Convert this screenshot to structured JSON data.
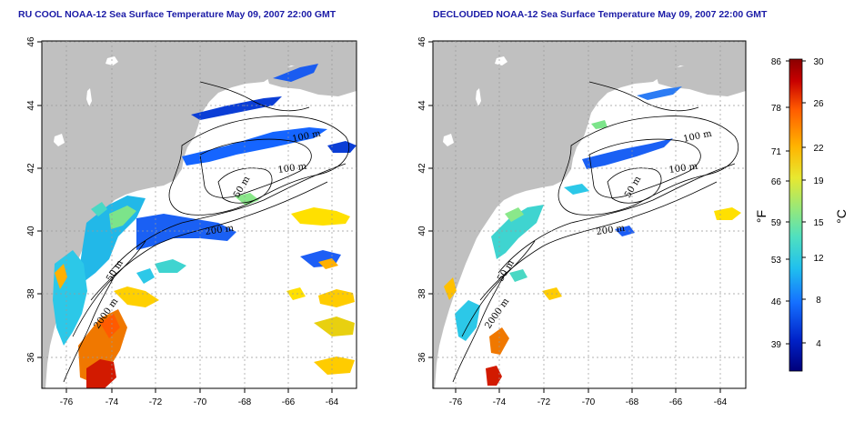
{
  "panels": [
    {
      "title": "RU COOL NOAA-12 Sea Surface Temperature May 09, 2007 22:00 GMT",
      "contour_labels": [
        "100 m",
        "100 m",
        "50 m",
        "200 m",
        "50 m",
        "2000 m"
      ]
    },
    {
      "title": "DECLOUDED NOAA-12 Sea Surface Temperature May 09, 2007 22:00 GMT",
      "contour_labels": [
        "100 m",
        "100 m",
        "50 m",
        "200 m",
        "50 m",
        "2000 m"
      ]
    }
  ],
  "axes": {
    "lon_ticks": [
      "-76",
      "-74",
      "-72",
      "-70",
      "-68",
      "-66",
      "-64"
    ],
    "lat_ticks": [
      "36",
      "38",
      "40",
      "42",
      "44",
      "46"
    ]
  },
  "colorbar": {
    "fahrenheit_ticks": [
      "86",
      "78",
      "71",
      "66",
      "59",
      "53",
      "46",
      "39"
    ],
    "celsius_ticks": [
      "30",
      "26",
      "22",
      "19",
      "15",
      "12",
      "8",
      "4"
    ],
    "left_unit": "°F",
    "right_unit": "°C",
    "colors": [
      "#00007a",
      "#0022c8",
      "#1570ff",
      "#20c0ee",
      "#4fe0c0",
      "#96e87a",
      "#e8e830",
      "#ffb400",
      "#ff5a00",
      "#c80000",
      "#8a0000"
    ]
  },
  "colors": {
    "land": "#c0c0c0",
    "title": "#1a1aa6"
  }
}
